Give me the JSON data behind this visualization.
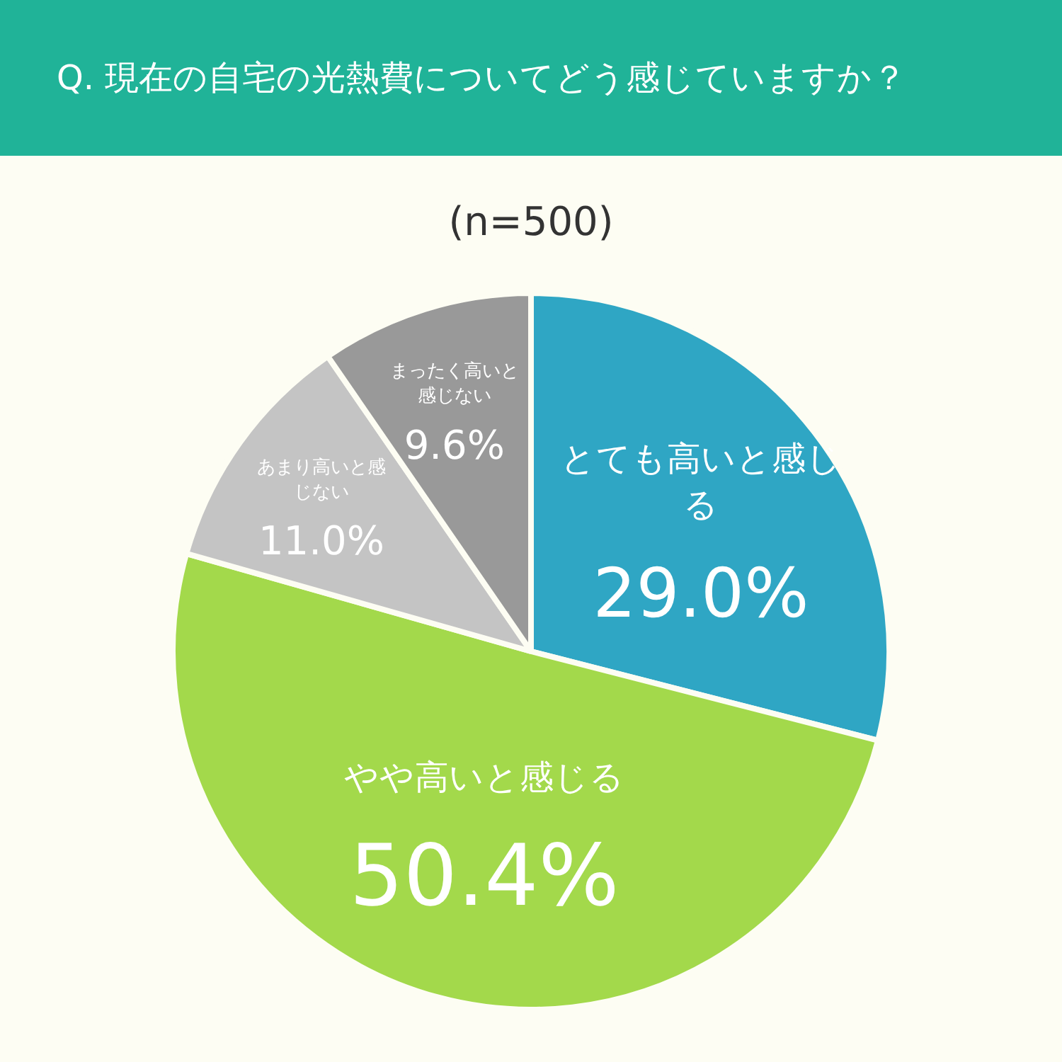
{
  "chart_data": {
    "type": "pie",
    "title": "Q. 現在の自宅の光熱費についてどう感じていますか？",
    "subtitle": "(n=500)",
    "categories": [
      "とても高いと感じる",
      "やや高いと感じる",
      "あまり高いと感じない",
      "まったく高いと感じない"
    ],
    "values": [
      29.0,
      50.4,
      11.0,
      9.6
    ],
    "colors": [
      "#2fa6c4",
      "#a3d94b",
      "#c4c4c4",
      "#999999"
    ],
    "value_labels": [
      "29.0%",
      "50.4%",
      "11.0%",
      "9.6%"
    ],
    "legend": false
  }
}
